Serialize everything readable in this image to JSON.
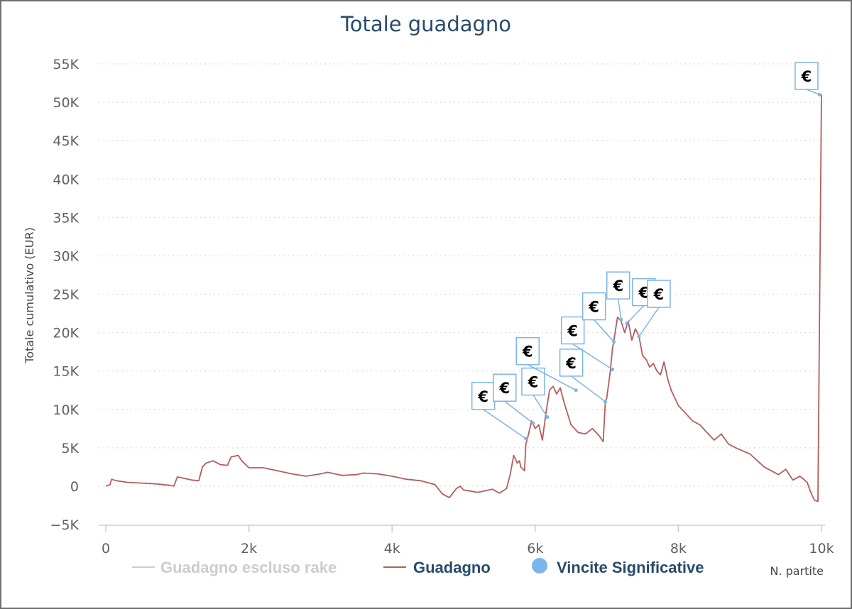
{
  "chart_data": {
    "type": "line",
    "title": "Totale guadagno",
    "xlabel": "N. partite",
    "ylabel": "Totale cumulativo (EUR)",
    "xlim": [
      0,
      10000
    ],
    "ylim": [
      -5000,
      55000
    ],
    "x_ticks": [
      0,
      2000,
      4000,
      6000,
      8000,
      10000
    ],
    "x_tick_labels": [
      "0",
      "2k",
      "4k",
      "6k",
      "8k",
      "10k"
    ],
    "y_ticks": [
      -5000,
      0,
      5000,
      10000,
      15000,
      20000,
      25000,
      30000,
      35000,
      40000,
      45000,
      50000,
      55000
    ],
    "y_tick_labels": [
      "−5K",
      "0",
      "5K",
      "10K",
      "15K",
      "20K",
      "25K",
      "30K",
      "35K",
      "40K",
      "45K",
      "50K",
      "55K"
    ],
    "grid": "horizontal dotted",
    "legend_position": "bottom",
    "series": [
      {
        "name": "Guadagno escluso rake",
        "color": "#cccccc",
        "visible": false,
        "x": [],
        "y": []
      },
      {
        "name": "Guadagno",
        "color": "#b85c5c",
        "x": [
          0,
          60,
          80,
          150,
          300,
          500,
          700,
          900,
          950,
          1000,
          1200,
          1300,
          1350,
          1400,
          1500,
          1600,
          1700,
          1750,
          1850,
          1900,
          2000,
          2200,
          2400,
          2600,
          2800,
          3000,
          3100,
          3300,
          3500,
          3600,
          3800,
          4000,
          4200,
          4400,
          4600,
          4700,
          4800,
          4900,
          4950,
          5000,
          5200,
          5400,
          5500,
          5600,
          5650,
          5700,
          5750,
          5780,
          5800,
          5850,
          5870,
          5900,
          5950,
          6000,
          6050,
          6100,
          6150,
          6200,
          6250,
          6300,
          6350,
          6400,
          6500,
          6600,
          6700,
          6800,
          6900,
          6950,
          6980,
          7000,
          7050,
          7080,
          7100,
          7150,
          7200,
          7250,
          7300,
          7350,
          7400,
          7450,
          7500,
          7550,
          7600,
          7650,
          7700,
          7750,
          7800,
          7850,
          7900,
          8000,
          8100,
          8200,
          8300,
          8400,
          8500,
          8600,
          8700,
          8800,
          9000,
          9200,
          9400,
          9500,
          9600,
          9700,
          9800,
          9850,
          9900,
          9950,
          9980,
          10000
        ],
        "y": [
          0,
          200,
          900,
          700,
          500,
          400,
          300,
          100,
          0,
          1200,
          800,
          700,
          2500,
          3000,
          3300,
          2800,
          2700,
          3800,
          4000,
          3300,
          2400,
          2400,
          2000,
          1600,
          1300,
          1600,
          1800,
          1400,
          1500,
          1700,
          1600,
          1300,
          900,
          700,
          200,
          -1000,
          -1500,
          -300,
          0,
          -500,
          -800,
          -400,
          -900,
          -300,
          1500,
          4000,
          3000,
          3300,
          2500,
          2000,
          5500,
          6500,
          8500,
          7500,
          8000,
          6000,
          9500,
          12500,
          13000,
          12000,
          12800,
          11000,
          8000,
          7000,
          6800,
          7500,
          6500,
          5800,
          11000,
          11500,
          15000,
          18000,
          19000,
          22000,
          21500,
          20000,
          21500,
          19000,
          20500,
          19500,
          17000,
          16500,
          15500,
          16000,
          15000,
          14500,
          16200,
          14000,
          12500,
          10500,
          9500,
          8500,
          8000,
          7000,
          6000,
          6800,
          5500,
          5000,
          4200,
          2500,
          1500,
          2200,
          800,
          1300,
          500,
          -800,
          -1800,
          -2000,
          30000,
          51000
        ]
      },
      {
        "name": "Vincite Significative",
        "color": "#7cb5ec",
        "marker": "€",
        "x": [
          5870,
          5970,
          6170,
          6570,
          6980,
          7080,
          7100,
          7200,
          7280,
          7450,
          9970
        ],
        "y": [
          6200,
          8200,
          9000,
          12500,
          11000,
          15200,
          18800,
          21700,
          21200,
          19500,
          51000
        ]
      }
    ]
  }
}
